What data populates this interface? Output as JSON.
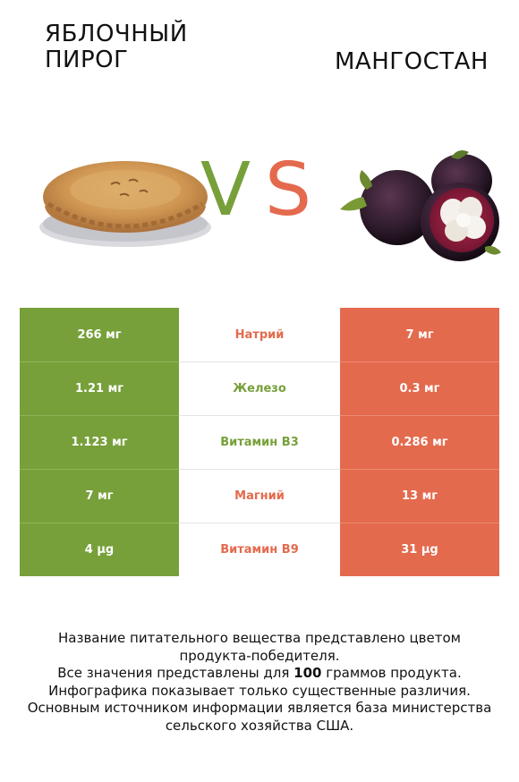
{
  "header": {
    "left_title": "ЯБЛОЧНЫЙ ПИРОГ",
    "right_title": "МАНГОСТАН",
    "vs_v": "V",
    "vs_s": "S"
  },
  "colors": {
    "left_accent": "#77a03a",
    "right_accent": "#e46a4d"
  },
  "rows": [
    {
      "left": "266 мг",
      "nutrient": "Натрий",
      "right": "7 мг",
      "winner_color": "#e46a4d"
    },
    {
      "left": "1.21 мг",
      "nutrient": "Железо",
      "right": "0.3 мг",
      "winner_color": "#77a03a"
    },
    {
      "left": "1.123 мг",
      "nutrient": "Витамин B3",
      "right": "0.286 мг",
      "winner_color": "#77a03a"
    },
    {
      "left": "7 мг",
      "nutrient": "Магний",
      "right": "13 мг",
      "winner_color": "#e46a4d"
    },
    {
      "left": "4 µg",
      "nutrient": "Витамин B9",
      "right": "31 µg",
      "winner_color": "#e46a4d"
    }
  ],
  "footer": {
    "line1": "Название питательного вещества представлено цветом",
    "line2": "продукта-победителя.",
    "line3_pre": "Все значения представлены для ",
    "line3_bold": "100",
    "line3_post": " граммов продукта.",
    "line4": "Инфографика показывает только существенные различия.",
    "line5": "Основным источником информации является база министерства",
    "line6": "сельского хозяйства США."
  }
}
